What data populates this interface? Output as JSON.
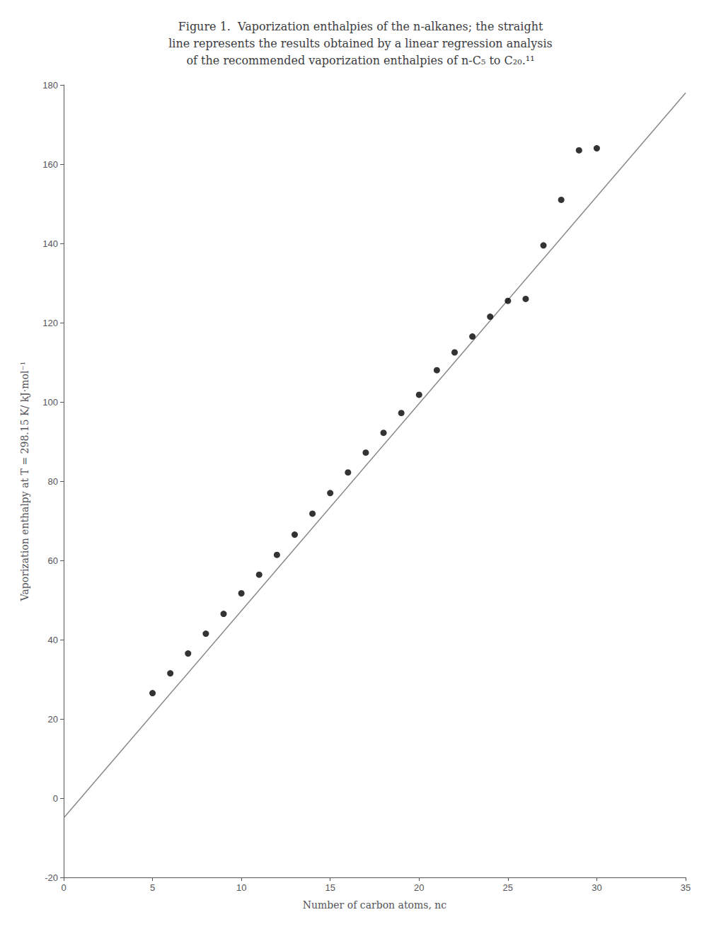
{
  "chart_data": {
    "type": "scatter",
    "title": "Figure 1.  Vaporization enthalpies of the n-alkanes; the straight\nline represents the results obtained by a linear regression analysis\nof the recommended vaporization enthalpies of n-C₅ to C₂₀.¹¹",
    "x_label": "Number of carbon atoms, nc",
    "y_label": "Vaporization enthalpy at T = 298.15 K/ kJ·mol⁻¹",
    "series": [
      {
        "type": "line",
        "color": "#888888",
        "x": [
          0,
          35
        ],
        "values": [
          -5.0,
          178.0
        ]
      },
      {
        "type": "scatter",
        "color": "#000000",
        "marker": "circle",
        "x": [
          5,
          6,
          7,
          8,
          9,
          10,
          11,
          12,
          13,
          14,
          15,
          16,
          17,
          18,
          19,
          20,
          21,
          22,
          23,
          24,
          25,
          26,
          27,
          28,
          29,
          30
        ],
        "values": [
          26.5,
          31.5,
          36.5,
          41.5,
          46.5,
          51.7,
          56.4,
          61.4,
          66.5,
          71.8,
          77.0,
          82.2,
          87.2,
          92.2,
          97.2,
          101.8,
          108.0,
          112.5,
          116.5,
          121.5,
          125.5,
          126.0,
          139.5,
          151.0,
          163.5,
          164.0
        ]
      }
    ],
    "xlim": [
      0,
      35
    ],
    "ylim": [
      -20,
      180
    ],
    "xticks": [
      0,
      5,
      10,
      15,
      20,
      25,
      30,
      35
    ],
    "yticks": [
      -20,
      0,
      20,
      40,
      60,
      80,
      100,
      120,
      140,
      160,
      180
    ],
    "grid": false
  }
}
